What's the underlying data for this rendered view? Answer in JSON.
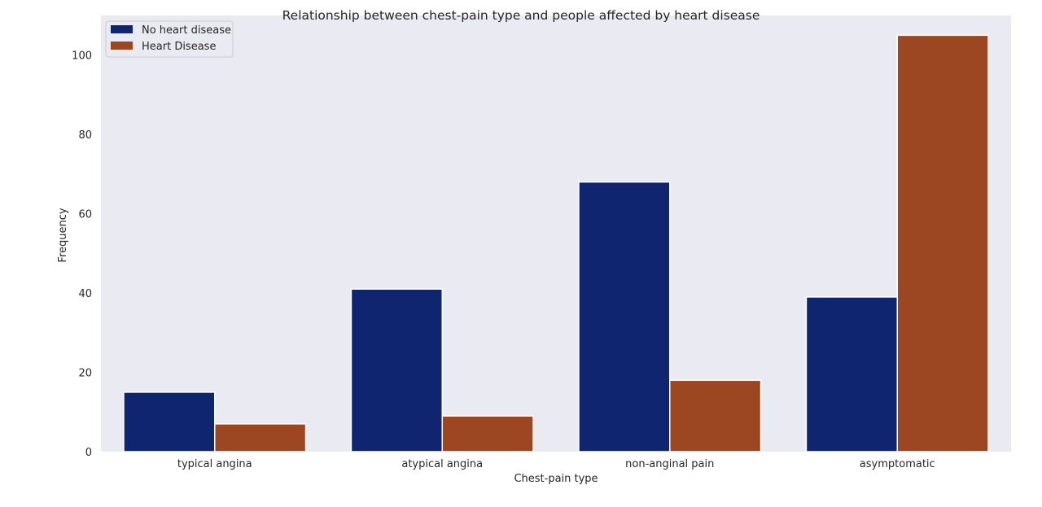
{
  "chart_data": {
    "type": "bar",
    "title": "Relationship between chest-pain type and people affected by heart disease",
    "xlabel": "Chest-pain type",
    "ylabel": "Frequency",
    "categories": [
      "typical angina",
      "atypical angina",
      "non-anginal pain",
      "asymptomatic"
    ],
    "series": [
      {
        "name": "No heart disease",
        "color": "#0f2570",
        "values": [
          15,
          41,
          68,
          39
        ]
      },
      {
        "name": "Heart Disease",
        "color": "#9c4721",
        "values": [
          7,
          9,
          18,
          105
        ]
      }
    ],
    "ylim": [
      0,
      110
    ],
    "yticks": [
      0,
      20,
      40,
      60,
      80,
      100
    ],
    "grid": false,
    "legend_position": "top-left",
    "background_color": "#eaeaf2"
  }
}
